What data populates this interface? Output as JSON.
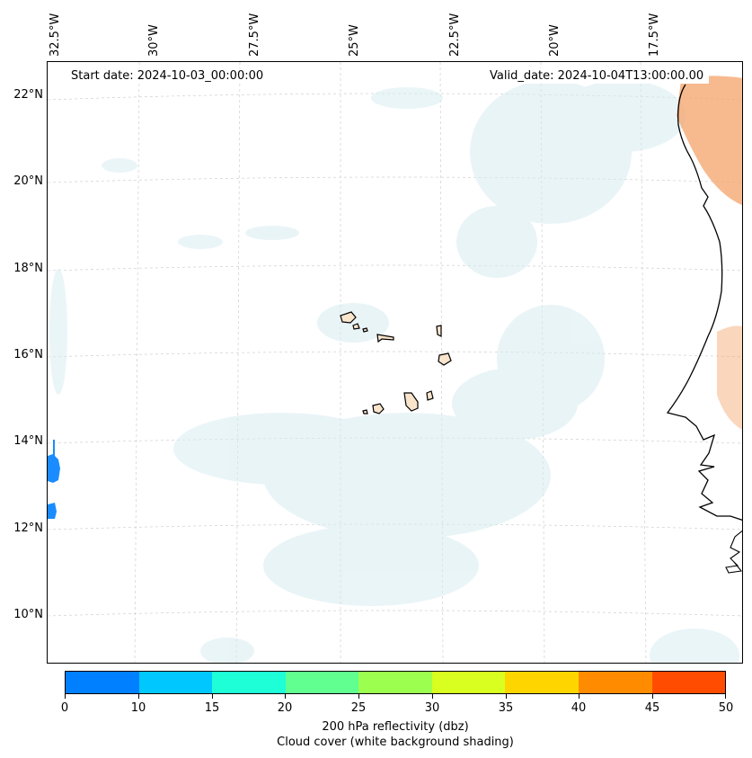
{
  "map": {
    "start_date": "Start date: 2024-10-03_00:00:00",
    "valid_date": "Valid_date: 2024-10-04T13:00:00.00",
    "lon_labels": [
      "32.5°W",
      "30°W",
      "27.5°W",
      "25°W",
      "22.5°W",
      "20°W",
      "17.5°W"
    ],
    "lat_labels": [
      "22°N",
      "20°N",
      "18°N",
      "16°N",
      "14°N",
      "12°N",
      "10°N"
    ],
    "lon_values": [
      -32.5,
      -30,
      -27.5,
      -25,
      -22.5,
      -20,
      -17.5
    ],
    "lat_values": [
      22,
      20,
      18,
      16,
      14,
      12,
      10
    ],
    "gridlines": true,
    "coastline_color": "#000000",
    "cloud_color": "#d8ecf2",
    "dust_color": "#f4a36a"
  },
  "colorbar": {
    "colors": [
      "#0080ff",
      "#00c8ff",
      "#1effd8",
      "#60ff90",
      "#9cff50",
      "#d8ff20",
      "#ffd500",
      "#ff8c00",
      "#ff4c00"
    ],
    "ticks": [
      "0",
      "10",
      "15",
      "20",
      "25",
      "30",
      "35",
      "40",
      "45",
      "50"
    ],
    "label_line1": "200 hPa reflectivity (dbz)",
    "label_line2": "Cloud cover (white background shading)"
  }
}
